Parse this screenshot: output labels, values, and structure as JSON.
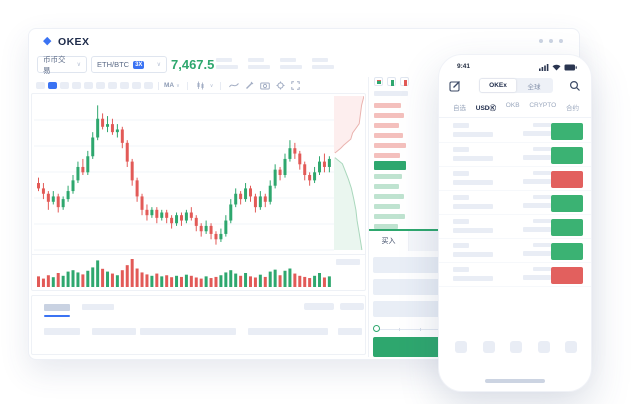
{
  "colors": {
    "up": "#2ea76e",
    "up_light": "#bfe3d0",
    "down": "#e25a57",
    "down_light": "#f4c0bd",
    "accent": "#3b73f3",
    "skeleton": "#e9edf5",
    "badge_up": "#3bb273",
    "badge_down": "#e2605e"
  },
  "desktop": {
    "logo_text": "OKEX",
    "market_type": "币币交易",
    "pair": "ETH/BTC",
    "leverage_badge": "3X",
    "last_price": "7,467.5",
    "toolbar": {
      "ma_label": "MA"
    },
    "orderbook": {
      "view_toggles": [
        "split-view",
        "bids-only",
        "asks-only"
      ],
      "asks_depth_widths": [
        27,
        30,
        25,
        29,
        32,
        26
      ],
      "bids_depth_widths": [
        28,
        25,
        30,
        26,
        31,
        24
      ],
      "buy_tab_label": "买入"
    }
  },
  "phone": {
    "status_time": "9:41",
    "segmented": {
      "options": [
        "OKEx",
        "全球"
      ],
      "active_index": 0
    },
    "filter_tabs": {
      "options": [
        "自选",
        "USDⓀ",
        "OKB",
        "CRYPTO",
        "合约"
      ],
      "active_index": 1
    },
    "market_rows": [
      {
        "change": "up"
      },
      {
        "change": "up"
      },
      {
        "change": "down"
      },
      {
        "change": "up"
      },
      {
        "change": "up"
      },
      {
        "change": "up"
      },
      {
        "change": "down"
      }
    ],
    "nav_item_count": 5
  },
  "chart_data": {
    "type": "candlestick",
    "title": "ETH/BTC candlestick chart (mockup — axis labels are skeleton placeholders)",
    "grid": true,
    "ylim": [
      30,
      90
    ],
    "candles_format": "[open, close, high, low] in relative price units",
    "candles": [
      [
        57,
        55,
        59,
        54
      ],
      [
        55,
        53,
        57,
        51
      ],
      [
        53,
        50,
        54,
        47
      ],
      [
        50,
        52,
        54,
        49
      ],
      [
        52,
        48,
        53,
        46
      ],
      [
        48,
        51,
        52,
        47
      ],
      [
        51,
        54,
        56,
        50
      ],
      [
        54,
        58,
        60,
        53
      ],
      [
        58,
        63,
        65,
        57
      ],
      [
        63,
        61,
        66,
        60
      ],
      [
        61,
        67,
        69,
        60
      ],
      [
        67,
        74,
        76,
        66
      ],
      [
        74,
        81,
        86,
        73
      ],
      [
        81,
        78,
        83,
        77
      ],
      [
        78,
        79,
        82,
        76
      ],
      [
        79,
        76,
        81,
        75
      ],
      [
        76,
        77,
        79,
        74
      ],
      [
        77,
        72,
        78,
        70
      ],
      [
        72,
        65,
        73,
        63
      ],
      [
        65,
        58,
        66,
        56
      ],
      [
        58,
        52,
        59,
        50
      ],
      [
        52,
        47,
        53,
        45
      ],
      [
        47,
        45,
        49,
        43
      ],
      [
        45,
        47,
        48,
        44
      ],
      [
        47,
        44,
        48,
        42
      ],
      [
        44,
        46,
        47,
        43
      ],
      [
        46,
        44,
        47,
        42
      ],
      [
        44,
        42,
        45,
        40
      ],
      [
        42,
        45,
        46,
        41
      ],
      [
        45,
        43,
        46,
        41
      ],
      [
        43,
        46,
        47,
        42
      ],
      [
        46,
        44,
        48,
        43
      ],
      [
        44,
        41,
        45,
        39
      ],
      [
        41,
        39,
        42,
        37
      ],
      [
        39,
        41,
        43,
        38
      ],
      [
        41,
        38,
        42,
        36
      ],
      [
        38,
        36,
        39,
        34
      ],
      [
        36,
        38,
        40,
        35
      ],
      [
        38,
        43,
        45,
        37
      ],
      [
        43,
        49,
        51,
        42
      ],
      [
        49,
        53,
        55,
        48
      ],
      [
        53,
        51,
        54,
        49
      ],
      [
        51,
        55,
        57,
        50
      ],
      [
        55,
        52,
        56,
        50
      ],
      [
        52,
        48,
        53,
        46
      ],
      [
        48,
        52,
        54,
        47
      ],
      [
        52,
        50,
        53,
        48
      ],
      [
        50,
        56,
        58,
        49
      ],
      [
        56,
        62,
        64,
        55
      ],
      [
        62,
        60,
        63,
        58
      ],
      [
        60,
        66,
        68,
        59
      ],
      [
        66,
        70,
        73,
        65
      ],
      [
        70,
        68,
        72,
        66
      ],
      [
        68,
        64,
        69,
        62
      ],
      [
        64,
        60,
        65,
        58
      ],
      [
        60,
        58,
        61,
        56
      ],
      [
        58,
        61,
        63,
        57
      ],
      [
        61,
        65,
        67,
        60
      ],
      [
        65,
        63,
        68,
        61
      ],
      [
        63,
        66,
        67,
        61
      ]
    ],
    "volume": [
      38,
      30,
      42,
      35,
      50,
      40,
      55,
      60,
      52,
      45,
      58,
      70,
      95,
      65,
      55,
      48,
      42,
      60,
      78,
      100,
      66,
      52,
      45,
      40,
      48,
      38,
      42,
      35,
      40,
      36,
      44,
      40,
      34,
      30,
      38,
      32,
      36,
      42,
      52,
      60,
      48,
      40,
      50,
      38,
      34,
      44,
      36,
      55,
      62,
      42,
      58,
      66,
      48,
      40,
      36,
      32,
      40,
      50,
      34,
      38
    ],
    "depth": {
      "asks_line": [
        [
          100,
          0
        ],
        [
          92,
          6
        ],
        [
          88,
          12
        ],
        [
          84,
          18
        ],
        [
          62,
          24
        ],
        [
          56,
          28
        ],
        [
          32,
          32
        ],
        [
          22,
          34
        ],
        [
          3,
          37
        ]
      ],
      "bids_line": [
        [
          3,
          40
        ],
        [
          28,
          44
        ],
        [
          38,
          49
        ],
        [
          48,
          54
        ],
        [
          58,
          60
        ],
        [
          66,
          67
        ],
        [
          73,
          74
        ],
        [
          77,
          81
        ],
        [
          84,
          89
        ],
        [
          89,
          95
        ],
        [
          93,
          100
        ]
      ]
    }
  }
}
